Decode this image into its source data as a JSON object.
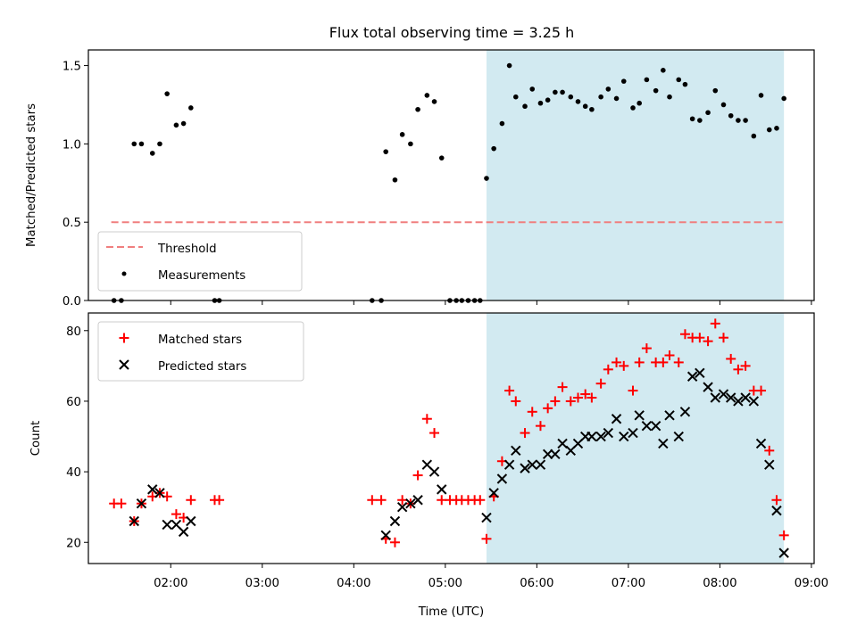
{
  "title": "Flux total observing time = 3.25 h",
  "colors": {
    "threshold": "#f07f7f",
    "measurements": "#000000",
    "matched": "#ff0000",
    "predicted": "#000000",
    "shade": "#add8e6"
  },
  "x_axis": {
    "label": "Time (UTC)",
    "ticks": [
      "02:00",
      "03:00",
      "04:00",
      "05:00",
      "06:00",
      "07:00",
      "08:00",
      "09:00"
    ]
  },
  "chart_data": [
    {
      "type": "scatter",
      "ylabel": "Matched/Predicted stars",
      "ylim": [
        0,
        1.6
      ],
      "yticks": [
        "0.0",
        "0.5",
        "1.0",
        "1.5"
      ],
      "xlim_hours": [
        1.1,
        9.03
      ],
      "shaded_interval_hours": [
        5.45,
        8.7
      ],
      "legend": {
        "placement": "lower-left",
        "entries": [
          "Threshold",
          "Measurements"
        ]
      },
      "threshold": {
        "name": "Threshold",
        "value": 0.5,
        "x_range_hours": [
          1.35,
          8.7
        ]
      },
      "series": [
        {
          "name": "Measurements",
          "points": [
            [
              1.38,
              0
            ],
            [
              1.46,
              0
            ],
            [
              1.6,
              1.0
            ],
            [
              1.68,
              1.0
            ],
            [
              1.8,
              0.94
            ],
            [
              1.88,
              1.0
            ],
            [
              1.96,
              1.32
            ],
            [
              2.06,
              1.12
            ],
            [
              2.14,
              1.13
            ],
            [
              2.22,
              1.23
            ],
            [
              2.48,
              0
            ],
            [
              2.53,
              0
            ],
            [
              4.2,
              0
            ],
            [
              4.3,
              0
            ],
            [
              4.35,
              0.95
            ],
            [
              4.45,
              0.77
            ],
            [
              4.53,
              1.06
            ],
            [
              4.62,
              1.0
            ],
            [
              4.7,
              1.22
            ],
            [
              4.8,
              1.31
            ],
            [
              4.88,
              1.27
            ],
            [
              4.96,
              0.91
            ],
            [
              5.05,
              0
            ],
            [
              5.12,
              0
            ],
            [
              5.18,
              0
            ],
            [
              5.25,
              0
            ],
            [
              5.32,
              0
            ],
            [
              5.38,
              0
            ],
            [
              5.45,
              0.78
            ],
            [
              5.53,
              0.97
            ],
            [
              5.62,
              1.13
            ],
            [
              5.7,
              1.5
            ],
            [
              5.77,
              1.3
            ],
            [
              5.87,
              1.24
            ],
            [
              5.95,
              1.35
            ],
            [
              6.04,
              1.26
            ],
            [
              6.12,
              1.28
            ],
            [
              6.2,
              1.33
            ],
            [
              6.28,
              1.33
            ],
            [
              6.37,
              1.3
            ],
            [
              6.45,
              1.27
            ],
            [
              6.53,
              1.24
            ],
            [
              6.6,
              1.22
            ],
            [
              6.7,
              1.3
            ],
            [
              6.78,
              1.35
            ],
            [
              6.87,
              1.29
            ],
            [
              6.95,
              1.4
            ],
            [
              7.05,
              1.23
            ],
            [
              7.12,
              1.26
            ],
            [
              7.2,
              1.41
            ],
            [
              7.3,
              1.34
            ],
            [
              7.38,
              1.47
            ],
            [
              7.45,
              1.3
            ],
            [
              7.55,
              1.41
            ],
            [
              7.62,
              1.38
            ],
            [
              7.7,
              1.16
            ],
            [
              7.78,
              1.15
            ],
            [
              7.87,
              1.2
            ],
            [
              7.95,
              1.34
            ],
            [
              8.04,
              1.25
            ],
            [
              8.12,
              1.18
            ],
            [
              8.2,
              1.15
            ],
            [
              8.28,
              1.15
            ],
            [
              8.37,
              1.05
            ],
            [
              8.45,
              1.31
            ],
            [
              8.54,
              1.09
            ],
            [
              8.62,
              1.1
            ],
            [
              8.7,
              1.29
            ]
          ]
        }
      ]
    },
    {
      "type": "scatter",
      "ylabel": "Count",
      "ylim": [
        14,
        85
      ],
      "yticks": [
        "20",
        "40",
        "60",
        "80"
      ],
      "xlim_hours": [
        1.1,
        9.03
      ],
      "shaded_interval_hours": [
        5.45,
        8.7
      ],
      "legend": {
        "placement": "top-left",
        "entries": [
          "Matched stars",
          "Predicted stars"
        ]
      },
      "series": [
        {
          "name": "Matched stars",
          "marker": "plus",
          "points": [
            [
              1.38,
              31
            ],
            [
              1.46,
              31
            ],
            [
              1.6,
              26
            ],
            [
              1.68,
              31
            ],
            [
              1.8,
              33
            ],
            [
              1.88,
              34
            ],
            [
              1.96,
              33
            ],
            [
              2.06,
              28
            ],
            [
              2.14,
              27
            ],
            [
              2.22,
              32
            ],
            [
              2.48,
              32
            ],
            [
              2.53,
              32
            ],
            [
              4.2,
              32
            ],
            [
              4.3,
              32
            ],
            [
              4.35,
              21
            ],
            [
              4.45,
              20
            ],
            [
              4.53,
              32
            ],
            [
              4.62,
              31
            ],
            [
              4.7,
              39
            ],
            [
              4.8,
              55
            ],
            [
              4.88,
              51
            ],
            [
              4.96,
              32
            ],
            [
              5.05,
              32
            ],
            [
              5.12,
              32
            ],
            [
              5.18,
              32
            ],
            [
              5.25,
              32
            ],
            [
              5.32,
              32
            ],
            [
              5.38,
              32
            ],
            [
              5.45,
              21
            ],
            [
              5.53,
              33
            ],
            [
              5.62,
              43
            ],
            [
              5.7,
              63
            ],
            [
              5.77,
              60
            ],
            [
              5.87,
              51
            ],
            [
              5.95,
              57
            ],
            [
              6.04,
              53
            ],
            [
              6.12,
              58
            ],
            [
              6.2,
              60
            ],
            [
              6.28,
              64
            ],
            [
              6.37,
              60
            ],
            [
              6.45,
              61
            ],
            [
              6.53,
              62
            ],
            [
              6.6,
              61
            ],
            [
              6.7,
              65
            ],
            [
              6.78,
              69
            ],
            [
              6.87,
              71
            ],
            [
              6.95,
              70
            ],
            [
              7.05,
              63
            ],
            [
              7.12,
              71
            ],
            [
              7.2,
              75
            ],
            [
              7.3,
              71
            ],
            [
              7.38,
              71
            ],
            [
              7.45,
              73
            ],
            [
              7.55,
              71
            ],
            [
              7.62,
              79
            ],
            [
              7.7,
              78
            ],
            [
              7.78,
              78
            ],
            [
              7.87,
              77
            ],
            [
              7.95,
              82
            ],
            [
              8.04,
              78
            ],
            [
              8.12,
              72
            ],
            [
              8.2,
              69
            ],
            [
              8.28,
              70
            ],
            [
              8.37,
              63
            ],
            [
              8.45,
              63
            ],
            [
              8.54,
              46
            ],
            [
              8.62,
              32
            ],
            [
              8.7,
              22
            ]
          ]
        },
        {
          "name": "Predicted stars",
          "marker": "x",
          "points": [
            [
              1.6,
              26
            ],
            [
              1.68,
              31
            ],
            [
              1.8,
              35
            ],
            [
              1.88,
              34
            ],
            [
              1.96,
              25
            ],
            [
              2.06,
              25
            ],
            [
              2.14,
              23
            ],
            [
              2.22,
              26
            ],
            [
              4.35,
              22
            ],
            [
              4.45,
              26
            ],
            [
              4.53,
              30
            ],
            [
              4.62,
              31
            ],
            [
              4.7,
              32
            ],
            [
              4.8,
              42
            ],
            [
              4.88,
              40
            ],
            [
              4.96,
              35
            ],
            [
              5.45,
              27
            ],
            [
              5.53,
              34
            ],
            [
              5.62,
              38
            ],
            [
              5.7,
              42
            ],
            [
              5.77,
              46
            ],
            [
              5.87,
              41
            ],
            [
              5.95,
              42
            ],
            [
              6.04,
              42
            ],
            [
              6.12,
              45
            ],
            [
              6.2,
              45
            ],
            [
              6.28,
              48
            ],
            [
              6.37,
              46
            ],
            [
              6.45,
              48
            ],
            [
              6.53,
              50
            ],
            [
              6.6,
              50
            ],
            [
              6.7,
              50
            ],
            [
              6.78,
              51
            ],
            [
              6.87,
              55
            ],
            [
              6.95,
              50
            ],
            [
              7.05,
              51
            ],
            [
              7.12,
              56
            ],
            [
              7.2,
              53
            ],
            [
              7.3,
              53
            ],
            [
              7.38,
              48
            ],
            [
              7.45,
              56
            ],
            [
              7.55,
              50
            ],
            [
              7.62,
              57
            ],
            [
              7.7,
              67
            ],
            [
              7.78,
              68
            ],
            [
              7.87,
              64
            ],
            [
              7.95,
              61
            ],
            [
              8.04,
              62
            ],
            [
              8.12,
              61
            ],
            [
              8.2,
              60
            ],
            [
              8.28,
              61
            ],
            [
              8.37,
              60
            ],
            [
              8.45,
              48
            ],
            [
              8.54,
              42
            ],
            [
              8.62,
              29
            ],
            [
              8.7,
              17
            ]
          ]
        }
      ]
    }
  ]
}
